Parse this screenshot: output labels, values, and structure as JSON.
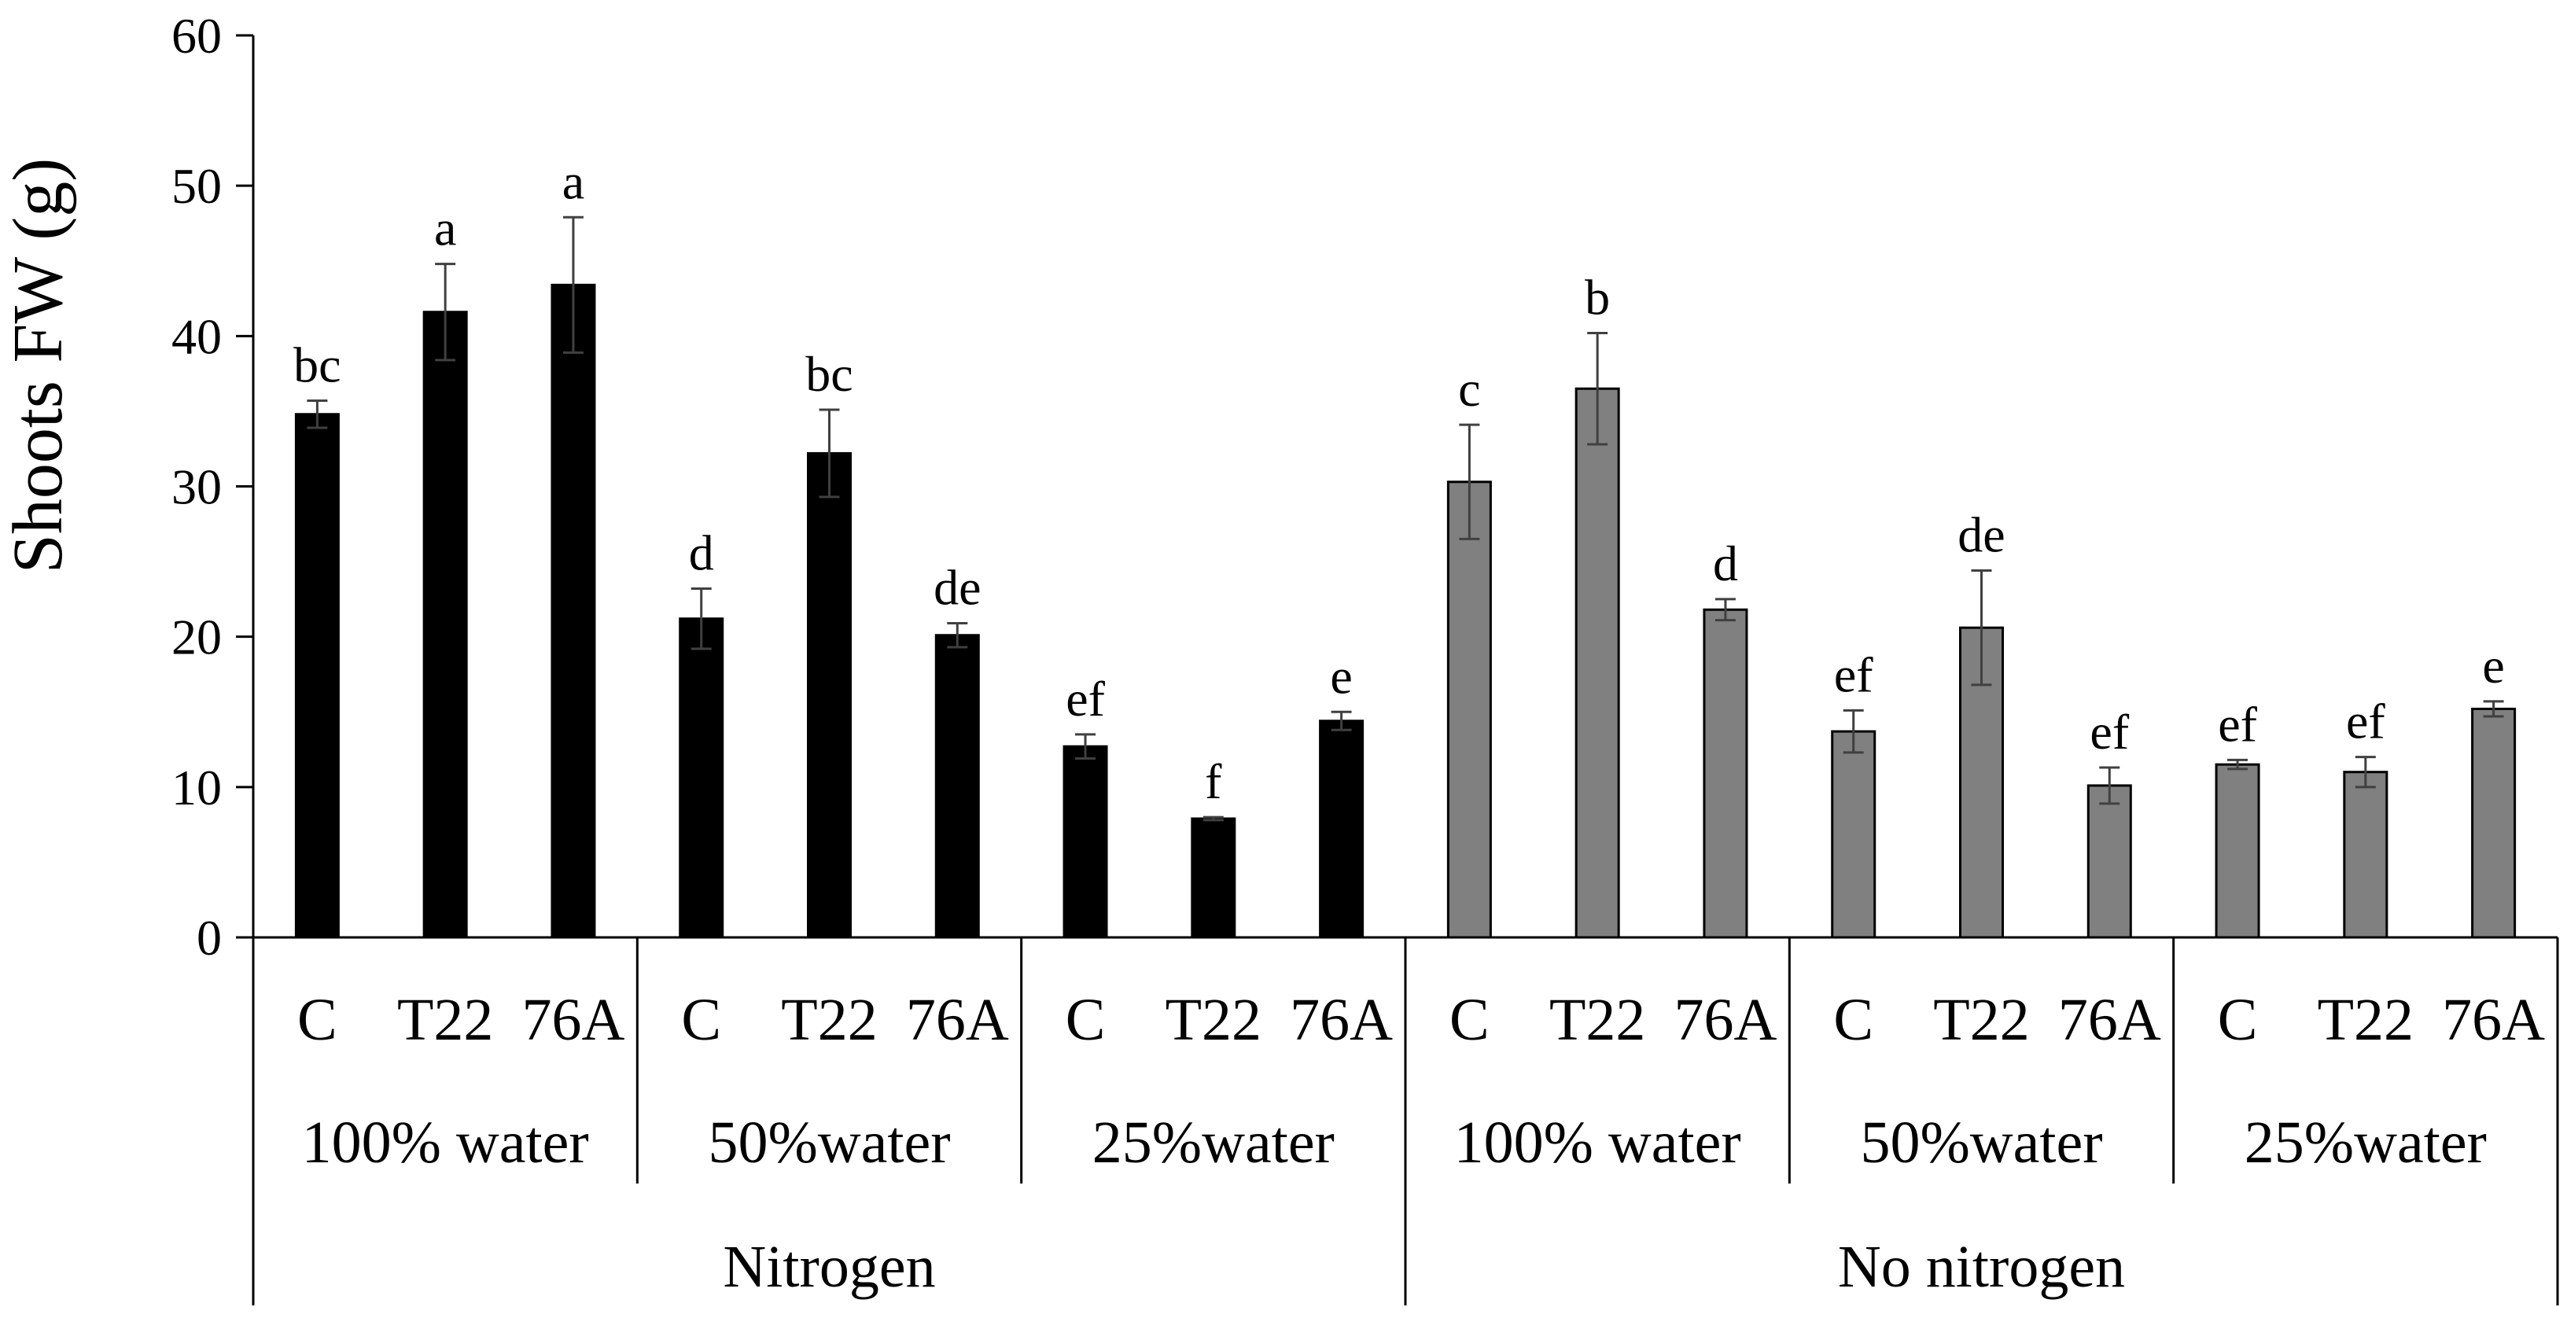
{
  "chart_data": {
    "type": "bar",
    "title": "",
    "xlabel": "",
    "ylabel": "Shoots FW (g)",
    "ylim": [
      0,
      60
    ],
    "yticks": [
      0,
      10,
      20,
      30,
      40,
      50,
      60
    ],
    "grid": false,
    "legend": "none",
    "colors": {
      "nitrogen": "#000000",
      "no_nitrogen": "#808080",
      "error_bar": "#404040"
    },
    "bars": [
      {
        "treatment": "C",
        "water": "100% water",
        "nitrogen": "Nitrogen",
        "value": 34.8,
        "error": 0.9,
        "letter": "bc"
      },
      {
        "treatment": "T22",
        "water": "100% water",
        "nitrogen": "Nitrogen",
        "value": 41.6,
        "error": 3.2,
        "letter": "a"
      },
      {
        "treatment": "76A",
        "water": "100% water",
        "nitrogen": "Nitrogen",
        "value": 43.4,
        "error": 4.5,
        "letter": "a"
      },
      {
        "treatment": "C",
        "water": "50%water",
        "nitrogen": "Nitrogen",
        "value": 21.2,
        "error": 2.0,
        "letter": "d"
      },
      {
        "treatment": "T22",
        "water": "50%water",
        "nitrogen": "Nitrogen",
        "value": 32.2,
        "error": 2.9,
        "letter": "bc"
      },
      {
        "treatment": "76A",
        "water": "50%water",
        "nitrogen": "Nitrogen",
        "value": 20.1,
        "error": 0.8,
        "letter": "de"
      },
      {
        "treatment": "C",
        "water": "25%water",
        "nitrogen": "Nitrogen",
        "value": 12.7,
        "error": 0.8,
        "letter": "ef"
      },
      {
        "treatment": "T22",
        "water": "25%water",
        "nitrogen": "Nitrogen",
        "value": 7.9,
        "error": 0.1,
        "letter": "f"
      },
      {
        "treatment": "76A",
        "water": "25%water",
        "nitrogen": "Nitrogen",
        "value": 14.4,
        "error": 0.6,
        "letter": "e"
      },
      {
        "treatment": "C",
        "water": "100% water",
        "nitrogen": "No nitrogen",
        "value": 30.3,
        "error": 3.8,
        "letter": "c"
      },
      {
        "treatment": "T22",
        "water": "100% water",
        "nitrogen": "No nitrogen",
        "value": 36.5,
        "error": 3.7,
        "letter": "b"
      },
      {
        "treatment": "76A",
        "water": "100% water",
        "nitrogen": "No nitrogen",
        "value": 21.8,
        "error": 0.7,
        "letter": "d"
      },
      {
        "treatment": "C",
        "water": "50%water",
        "nitrogen": "No nitrogen",
        "value": 13.7,
        "error": 1.4,
        "letter": "ef"
      },
      {
        "treatment": "T22",
        "water": "50%water",
        "nitrogen": "No nitrogen",
        "value": 20.6,
        "error": 3.8,
        "letter": "de"
      },
      {
        "treatment": "76A",
        "water": "50%water",
        "nitrogen": "No nitrogen",
        "value": 10.1,
        "error": 1.2,
        "letter": "ef"
      },
      {
        "treatment": "C",
        "water": "25%water",
        "nitrogen": "No nitrogen",
        "value": 11.5,
        "error": 0.3,
        "letter": "ef"
      },
      {
        "treatment": "T22",
        "water": "25%water",
        "nitrogen": "No nitrogen",
        "value": 11.0,
        "error": 1.0,
        "letter": "ef"
      },
      {
        "treatment": "76A",
        "water": "25%water",
        "nitrogen": "No nitrogen",
        "value": 15.2,
        "error": 0.5,
        "letter": "e"
      }
    ],
    "water_groups": [
      "100% water",
      "50%water",
      "25%water",
      "100% water",
      "50%water",
      "25%water"
    ],
    "nitrogen_groups": [
      "Nitrogen",
      "No nitrogen"
    ]
  }
}
